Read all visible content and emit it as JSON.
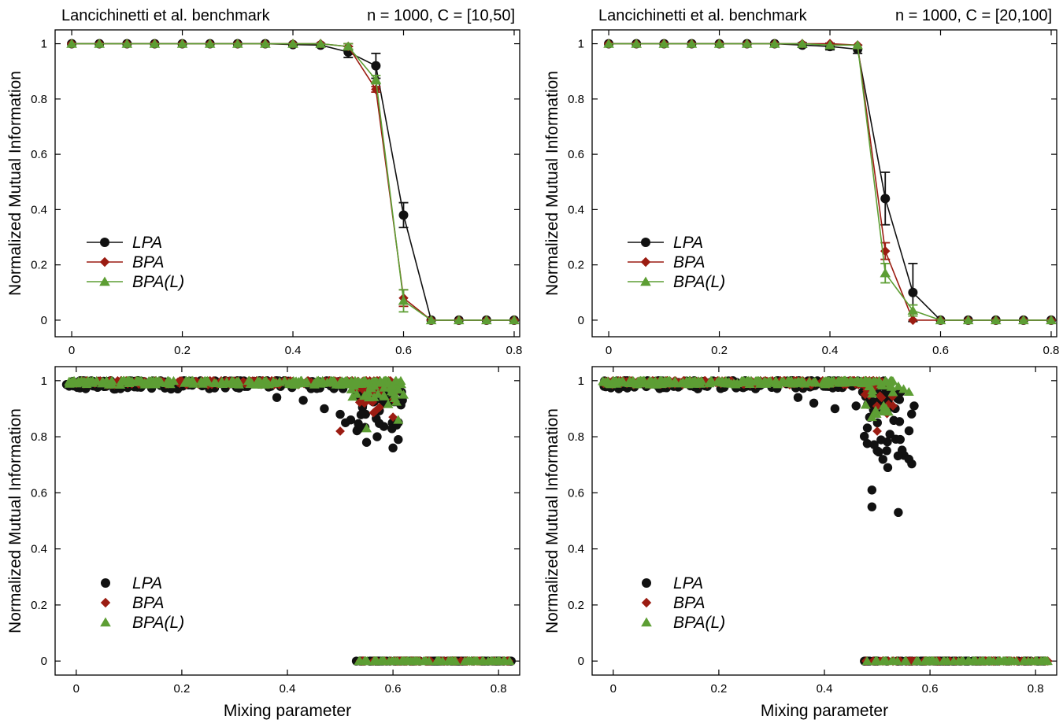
{
  "chart_data": [
    {
      "type": "line",
      "title_left": "Lancichinetti et al. benchmark",
      "title_right": "n = 1000, C = [10,50]",
      "xlabel": "",
      "ylabel": "Normalized Mutual Information",
      "xlim": [
        -0.03,
        0.81
      ],
      "ylim": [
        -0.06,
        1.05
      ],
      "xticks": [
        0,
        0.2,
        0.4,
        0.6,
        0.8
      ],
      "xticklabels": [
        "0",
        "0.2",
        "0.4",
        "0.6",
        "0.8"
      ],
      "yticks": [
        0,
        0.2,
        0.4,
        0.6,
        0.8,
        1
      ],
      "yticklabels": [
        "0",
        "0.2",
        "0.4",
        "0.6",
        "0.8",
        "1"
      ],
      "legend_placement": "middle-left",
      "x": [
        0,
        0.05,
        0.1,
        0.15,
        0.2,
        0.25,
        0.3,
        0.35,
        0.4,
        0.45,
        0.5,
        0.55,
        0.6,
        0.65,
        0.7,
        0.75,
        0.8
      ],
      "series": [
        {
          "name": "LPA",
          "color": "#111111",
          "marker": "circle",
          "values": [
            1,
            1,
            1,
            1,
            1,
            1,
            1,
            1,
            0.997,
            0.995,
            0.97,
            0.92,
            0.38,
            0,
            0,
            0,
            0
          ],
          "errors": [
            0,
            0,
            0,
            0,
            0,
            0,
            0,
            0,
            0.004,
            0.006,
            0.02,
            0.045,
            0.045,
            0,
            0,
            0,
            0
          ]
        },
        {
          "name": "BPA",
          "color": "#9b1c12",
          "marker": "diamond",
          "values": [
            1,
            1,
            1,
            1,
            1,
            1,
            1,
            1,
            1,
            1,
            0.99,
            0.835,
            0.08,
            0,
            0,
            0,
            0
          ],
          "errors": [
            0,
            0,
            0,
            0,
            0,
            0,
            0,
            0,
            0,
            0,
            0.01,
            0.01,
            0.03,
            0,
            0,
            0,
            0
          ]
        },
        {
          "name": "BPA(L)",
          "color": "#5d9e34",
          "marker": "triangle",
          "values": [
            1,
            1,
            1,
            1,
            1,
            1,
            1,
            1,
            1,
            1,
            0.99,
            0.87,
            0.07,
            0,
            0,
            0,
            0
          ],
          "errors": [
            0,
            0,
            0,
            0,
            0,
            0,
            0,
            0,
            0,
            0,
            0.01,
            0.015,
            0.04,
            0,
            0,
            0,
            0
          ]
        }
      ]
    },
    {
      "type": "line",
      "title_left": "Lancichinetti et al. benchmark",
      "title_right": "n = 1000, C = [20,100]",
      "xlabel": "",
      "ylabel": "Normalized Mutual Information",
      "xlim": [
        -0.03,
        0.81
      ],
      "ylim": [
        -0.06,
        1.05
      ],
      "xticks": [
        0,
        0.2,
        0.4,
        0.6,
        0.8
      ],
      "xticklabels": [
        "0",
        "0.2",
        "0.4",
        "0.6",
        "0.8"
      ],
      "yticks": [
        0,
        0.2,
        0.4,
        0.6,
        0.8,
        1
      ],
      "yticklabels": [
        "0",
        "0.2",
        "0.4",
        "0.6",
        "0.8",
        "1"
      ],
      "legend_placement": "middle-left",
      "x": [
        0,
        0.05,
        0.1,
        0.15,
        0.2,
        0.25,
        0.3,
        0.35,
        0.4,
        0.45,
        0.5,
        0.55,
        0.6,
        0.65,
        0.7,
        0.75,
        0.8
      ],
      "series": [
        {
          "name": "LPA",
          "color": "#111111",
          "marker": "circle",
          "values": [
            1,
            1,
            1,
            1,
            1,
            1,
            1,
            0.995,
            0.99,
            0.98,
            0.44,
            0.1,
            0,
            0,
            0,
            0,
            0
          ],
          "errors": [
            0,
            0,
            0,
            0,
            0,
            0,
            0,
            0.008,
            0.012,
            0.015,
            0.095,
            0.105,
            0,
            0,
            0,
            0,
            0
          ]
        },
        {
          "name": "BPA",
          "color": "#9b1c12",
          "marker": "diamond",
          "values": [
            1,
            1,
            1,
            1,
            1,
            1,
            1,
            1,
            1,
            0.995,
            0.25,
            0,
            0,
            0,
            0,
            0,
            0
          ],
          "errors": [
            0,
            0,
            0,
            0,
            0,
            0,
            0,
            0,
            0,
            0,
            0.03,
            0,
            0,
            0,
            0,
            0,
            0
          ]
        },
        {
          "name": "BPA(L)",
          "color": "#5d9e34",
          "marker": "triangle",
          "values": [
            1,
            1,
            1,
            1,
            1,
            1,
            1,
            1,
            0.995,
            0.995,
            0.17,
            0.035,
            0,
            0,
            0,
            0,
            0
          ],
          "errors": [
            0,
            0,
            0,
            0,
            0,
            0,
            0,
            0,
            0,
            0,
            0.035,
            0.02,
            0,
            0,
            0,
            0,
            0
          ]
        }
      ]
    },
    {
      "type": "scatter",
      "title_left": "",
      "title_right": "",
      "xlabel": "Mixing parameter",
      "ylabel": "Normalized Mutual Information",
      "xlim": [
        -0.04,
        0.84
      ],
      "ylim": [
        -0.05,
        1.05
      ],
      "xticks": [
        0,
        0.2,
        0.4,
        0.6,
        0.8
      ],
      "xticklabels": [
        "0",
        "0.2",
        "0.4",
        "0.6",
        "0.8"
      ],
      "yticks": [
        0,
        0.2,
        0.4,
        0.6,
        0.8,
        1
      ],
      "yticklabels": [
        "0",
        "0.2",
        "0.4",
        "0.6",
        "0.8",
        "1"
      ],
      "legend_placement": "bottom-left",
      "scatter_layers": [
        {
          "name": "LPA",
          "color": "#111111",
          "marker": "circle",
          "bands": [
            {
              "x": [
                -0.02,
                0.51
              ],
              "y": [
                0.97,
                1.0
              ],
              "n": 190
            },
            {
              "x": [
                0.53,
                0.62
              ],
              "y": [
                0.82,
                0.97
              ],
              "n": 55
            },
            {
              "x": [
                0.53,
                0.825
              ],
              "y": [
                0,
                0
              ],
              "n": 80
            }
          ],
          "points": [
            [
              0.38,
              0.94
            ],
            [
              0.43,
              0.93
            ],
            [
              0.47,
              0.9
            ],
            [
              0.5,
              0.88
            ],
            [
              0.51,
              0.85
            ],
            [
              0.52,
              0.86
            ],
            [
              0.55,
              0.78
            ],
            [
              0.57,
              0.8
            ],
            [
              0.6,
              0.76
            ],
            [
              0.61,
              0.79
            ]
          ]
        },
        {
          "name": "BPA",
          "color": "#9b1c12",
          "marker": "diamond",
          "bands": [
            {
              "x": [
                -0.02,
                0.6
              ],
              "y": [
                0.985,
                1.0
              ],
              "n": 180
            },
            {
              "x": [
                0.53,
                0.61
              ],
              "y": [
                0.88,
                0.99
              ],
              "n": 30
            },
            {
              "x": [
                0.53,
                0.825
              ],
              "y": [
                0,
                0
              ],
              "n": 70
            }
          ],
          "points": [
            [
              0.5,
              0.82
            ],
            [
              0.6,
              0.87
            ]
          ]
        },
        {
          "name": "BPA(L)",
          "color": "#5d9e34",
          "marker": "triangle",
          "bands": [
            {
              "x": [
                -0.02,
                0.62
              ],
              "y": [
                0.985,
                1.0
              ],
              "n": 210
            },
            {
              "x": [
                0.52,
                0.62
              ],
              "y": [
                0.9,
                1.0
              ],
              "n": 40
            },
            {
              "x": [
                0.53,
                0.825
              ],
              "y": [
                0,
                0
              ],
              "n": 90
            }
          ],
          "points": [
            [
              0.55,
              0.83
            ],
            [
              0.61,
              0.86
            ],
            [
              0.62,
              0.95
            ]
          ]
        }
      ]
    },
    {
      "type": "scatter",
      "title_left": "",
      "title_right": "",
      "xlabel": "Mixing parameter",
      "ylabel": "Normalized Mutual Information",
      "xlim": [
        -0.04,
        0.84
      ],
      "ylim": [
        -0.05,
        1.05
      ],
      "xticks": [
        0,
        0.2,
        0.4,
        0.6,
        0.8
      ],
      "xticklabels": [
        "0",
        "0.2",
        "0.4",
        "0.6",
        "0.8"
      ],
      "yticks": [
        0,
        0.2,
        0.4,
        0.6,
        0.8,
        1
      ],
      "yticklabels": [
        "0",
        "0.2",
        "0.4",
        "0.6",
        "0.8",
        "1"
      ],
      "legend_placement": "bottom-left",
      "scatter_layers": [
        {
          "name": "LPA",
          "color": "#111111",
          "marker": "circle",
          "bands": [
            {
              "x": [
                -0.02,
                0.52
              ],
              "y": [
                0.97,
                1.0
              ],
              "n": 180
            },
            {
              "x": [
                0.47,
                0.57
              ],
              "y": [
                0.7,
                0.96
              ],
              "n": 45
            },
            {
              "x": [
                0.475,
                0.825
              ],
              "y": [
                0,
                0
              ],
              "n": 80
            }
          ],
          "points": [
            [
              0.35,
              0.94
            ],
            [
              0.38,
              0.92
            ],
            [
              0.42,
              0.9
            ],
            [
              0.46,
              0.91
            ],
            [
              0.49,
              0.55
            ],
            [
              0.49,
              0.61
            ],
            [
              0.54,
              0.53
            ],
            [
              0.5,
              0.75
            ],
            [
              0.52,
              0.69
            ],
            [
              0.56,
              0.72
            ],
            [
              0.57,
              0.91
            ]
          ]
        },
        {
          "name": "BPA",
          "color": "#9b1c12",
          "marker": "diamond",
          "bands": [
            {
              "x": [
                -0.02,
                0.52
              ],
              "y": [
                0.985,
                1.0
              ],
              "n": 170
            },
            {
              "x": [
                0.47,
                0.53
              ],
              "y": [
                0.88,
                1.0
              ],
              "n": 25
            },
            {
              "x": [
                0.475,
                0.825
              ],
              "y": [
                0,
                0
              ],
              "n": 70
            }
          ],
          "points": [
            [
              0.5,
              0.82
            ],
            [
              0.53,
              0.91
            ]
          ]
        },
        {
          "name": "BPA(L)",
          "color": "#5d9e34",
          "marker": "triangle",
          "bands": [
            {
              "x": [
                -0.02,
                0.5
              ],
              "y": [
                0.985,
                1.0
              ],
              "n": 200
            },
            {
              "x": [
                0.47,
                0.53
              ],
              "y": [
                0.88,
                1.0
              ],
              "n": 30
            },
            {
              "x": [
                0.475,
                0.825
              ],
              "y": [
                0,
                0
              ],
              "n": 90
            }
          ],
          "points": [
            [
              0.54,
              0.98
            ],
            [
              0.55,
              0.97
            ],
            [
              0.56,
              0.96
            ],
            [
              0.49,
              0.87
            ]
          ]
        }
      ]
    }
  ]
}
